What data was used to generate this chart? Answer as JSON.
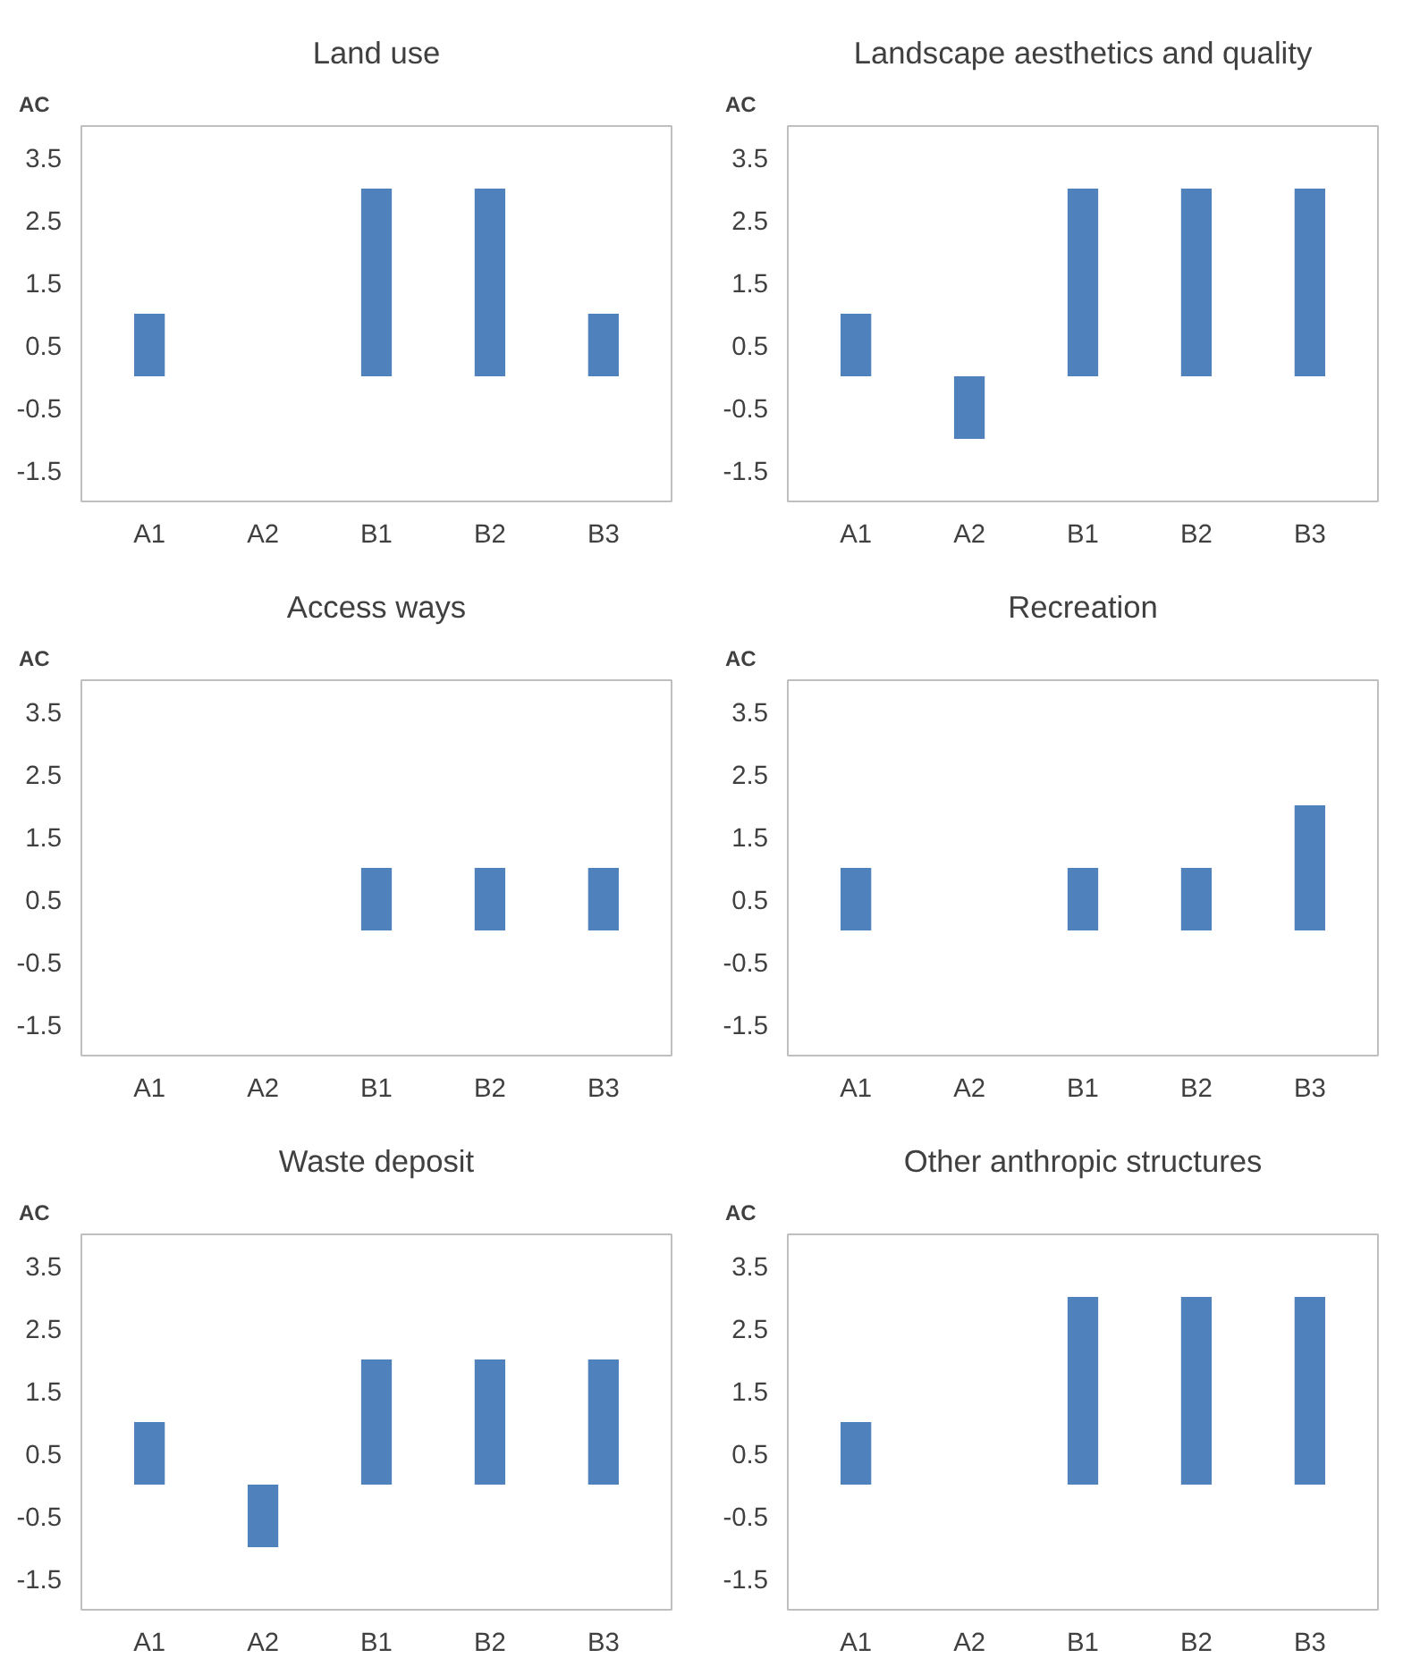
{
  "chart_data": [
    {
      "type": "bar",
      "title": "Land use",
      "ylabel": "AC",
      "categories": [
        "A1",
        "A2",
        "B1",
        "B2",
        "B3"
      ],
      "values": [
        1,
        0,
        3,
        3,
        1
      ],
      "color": "#4f81bd",
      "ylim": [
        -2,
        4
      ],
      "yticks": [
        -1.5,
        -0.5,
        0.5,
        1.5,
        2.5,
        3.5
      ],
      "grid": false
    },
    {
      "type": "bar",
      "title": "Landscape aesthetics and quality",
      "ylabel": "AC",
      "categories": [
        "A1",
        "A2",
        "B1",
        "B2",
        "B3"
      ],
      "values": [
        1,
        -1,
        3,
        3,
        3
      ],
      "color": "#4f81bd",
      "ylim": [
        -2,
        4
      ],
      "yticks": [
        -1.5,
        -0.5,
        0.5,
        1.5,
        2.5,
        3.5
      ],
      "grid": false
    },
    {
      "type": "bar",
      "title": "Access ways",
      "ylabel": "AC",
      "categories": [
        "A1",
        "A2",
        "B1",
        "B2",
        "B3"
      ],
      "values": [
        0,
        0,
        1,
        1,
        1
      ],
      "color": "#4f81bd",
      "ylim": [
        -2,
        4
      ],
      "yticks": [
        -1.5,
        -0.5,
        0.5,
        1.5,
        2.5,
        3.5
      ],
      "grid": false
    },
    {
      "type": "bar",
      "title": "Recreation",
      "ylabel": "AC",
      "categories": [
        "A1",
        "A2",
        "B1",
        "B2",
        "B3"
      ],
      "values": [
        1,
        0,
        1,
        1,
        2
      ],
      "color": "#4f81bd",
      "ylim": [
        -2,
        4
      ],
      "yticks": [
        -1.5,
        -0.5,
        0.5,
        1.5,
        2.5,
        3.5
      ],
      "grid": false
    },
    {
      "type": "bar",
      "title": "Waste deposit",
      "ylabel": "AC",
      "categories": [
        "A1",
        "A2",
        "B1",
        "B2",
        "B3"
      ],
      "values": [
        1,
        -1,
        2,
        2,
        2
      ],
      "color": "#4f81bd",
      "ylim": [
        -2,
        4
      ],
      "yticks": [
        -1.5,
        -0.5,
        0.5,
        1.5,
        2.5,
        3.5
      ],
      "grid": false
    },
    {
      "type": "bar",
      "title": "Other anthropic structures",
      "ylabel": "AC",
      "categories": [
        "A1",
        "A2",
        "B1",
        "B2",
        "B3"
      ],
      "values": [
        1,
        0,
        3,
        3,
        3
      ],
      "color": "#4f81bd",
      "ylim": [
        -2,
        4
      ],
      "yticks": [
        -1.5,
        -0.5,
        0.5,
        1.5,
        2.5,
        3.5
      ],
      "grid": false
    }
  ]
}
